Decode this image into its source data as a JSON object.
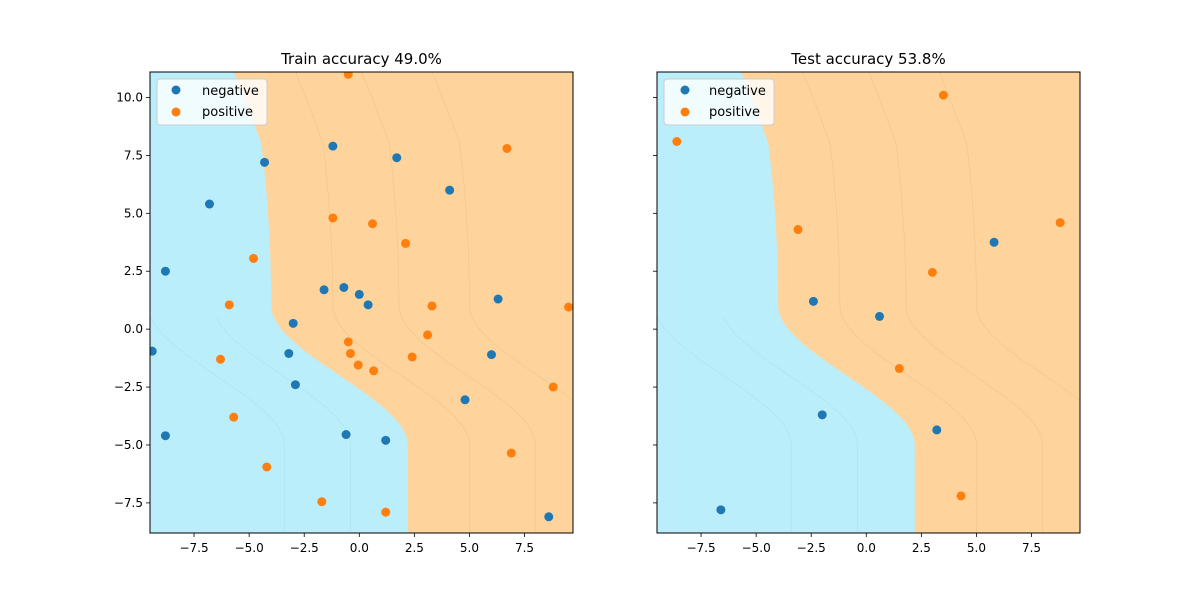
{
  "colors": {
    "negative_region": "#bbeefb",
    "positive_region": "#fed49c",
    "contour": "#e8b878",
    "contour_blue": "#9fd7e6",
    "negative_point": "#1f77b4",
    "positive_point": "#ff7f0e"
  },
  "chart_data": [
    {
      "type": "scatter",
      "title": "Train accuracy 49.0%",
      "xlim": [
        -9.5,
        9.7
      ],
      "ylim": [
        -8.8,
        11.1
      ],
      "xticks": [
        -7.5,
        -5.0,
        -2.5,
        0.0,
        2.5,
        5.0,
        7.5
      ],
      "yticks": [
        -7.5,
        -5.0,
        -2.5,
        0.0,
        2.5,
        5.0,
        7.5,
        10.0
      ],
      "x_tick_labels": [
        "−7.5",
        "−5.0",
        "−2.5",
        "0.0",
        "2.5",
        "5.0",
        "7.5"
      ],
      "y_tick_labels": [
        "−7.5",
        "−5.0",
        "−2.5",
        "0.0",
        "2.5",
        "5.0",
        "7.5",
        "10.0"
      ],
      "show_y_tick_labels": true,
      "grid": false,
      "legend": "top-left",
      "series": [
        {
          "name": "negative",
          "points": [
            [
              -4.3,
              7.2
            ],
            [
              -1.2,
              7.9
            ],
            [
              1.7,
              7.4
            ],
            [
              4.1,
              6.0
            ],
            [
              -6.8,
              5.4
            ],
            [
              -8.8,
              2.5
            ],
            [
              -1.6,
              1.7
            ],
            [
              -0.7,
              1.8
            ],
            [
              0.0,
              1.5
            ],
            [
              0.4,
              1.05
            ],
            [
              6.3,
              1.3
            ],
            [
              -3.0,
              0.25
            ],
            [
              -9.4,
              -0.95
            ],
            [
              -3.2,
              -1.05
            ],
            [
              -2.9,
              -2.4
            ],
            [
              6.0,
              -1.1
            ],
            [
              4.8,
              -3.05
            ],
            [
              -8.8,
              -4.6
            ],
            [
              -0.6,
              -4.55
            ],
            [
              1.2,
              -4.8
            ],
            [
              8.6,
              -8.1
            ]
          ]
        },
        {
          "name": "positive",
          "points": [
            [
              -0.5,
              11.0
            ],
            [
              6.7,
              7.8
            ],
            [
              -1.2,
              4.8
            ],
            [
              0.6,
              4.55
            ],
            [
              2.1,
              3.7
            ],
            [
              -4.8,
              3.05
            ],
            [
              -5.9,
              1.05
            ],
            [
              3.3,
              1.0
            ],
            [
              9.5,
              0.95
            ],
            [
              3.1,
              -0.25
            ],
            [
              -0.5,
              -0.55
            ],
            [
              -0.4,
              -1.05
            ],
            [
              2.4,
              -1.2
            ],
            [
              -6.3,
              -1.3
            ],
            [
              -0.05,
              -1.55
            ],
            [
              0.65,
              -1.8
            ],
            [
              8.8,
              -2.5
            ],
            [
              -5.7,
              -3.8
            ],
            [
              6.9,
              -5.35
            ],
            [
              -4.2,
              -5.95
            ],
            [
              -1.7,
              -7.45
            ],
            [
              1.2,
              -7.9
            ]
          ]
        }
      ]
    },
    {
      "type": "scatter",
      "title": "Test accuracy 53.8%",
      "xlim": [
        -9.5,
        9.7
      ],
      "ylim": [
        -8.8,
        11.1
      ],
      "xticks": [
        -7.5,
        -5.0,
        -2.5,
        0.0,
        2.5,
        5.0,
        7.5
      ],
      "yticks": [
        -7.5,
        -5.0,
        -2.5,
        0.0,
        2.5,
        5.0,
        7.5,
        10.0
      ],
      "x_tick_labels": [
        "−7.5",
        "−5.0",
        "−2.5",
        "0.0",
        "2.5",
        "5.0",
        "7.5"
      ],
      "y_tick_labels": [],
      "show_y_tick_labels": false,
      "grid": false,
      "legend": "top-left",
      "series": [
        {
          "name": "negative",
          "points": [
            [
              5.8,
              3.75
            ],
            [
              -2.4,
              1.2
            ],
            [
              0.6,
              0.55
            ],
            [
              -2.0,
              -3.7
            ],
            [
              3.2,
              -4.35
            ],
            [
              -6.6,
              -7.8
            ]
          ]
        },
        {
          "name": "positive",
          "points": [
            [
              3.5,
              10.1
            ],
            [
              -8.6,
              8.1
            ],
            [
              8.8,
              4.6
            ],
            [
              -3.1,
              4.3
            ],
            [
              3.0,
              2.45
            ],
            [
              1.5,
              -1.7
            ],
            [
              4.3,
              -7.2
            ]
          ]
        }
      ]
    }
  ]
}
